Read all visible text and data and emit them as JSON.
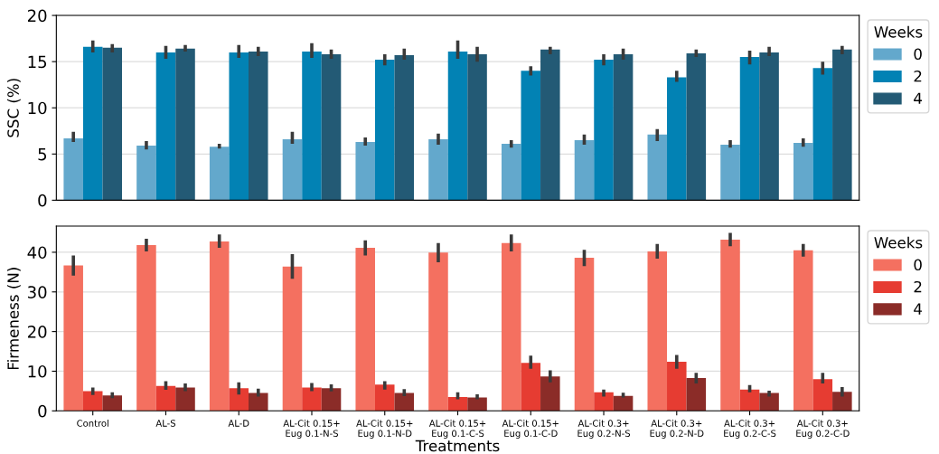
{
  "chart_data": [
    {
      "type": "bar",
      "ylabel": "SSC (%)",
      "legend_title": "Weeks",
      "legend": "top right",
      "grid": "y",
      "tick_labels": "y",
      "categories": [
        null,
        null,
        null,
        null,
        null,
        null,
        null,
        null,
        null,
        null,
        null
      ],
      "ylim": [
        0,
        20
      ],
      "yticks": [
        0,
        5,
        10,
        15,
        20
      ],
      "series": [
        {
          "name": "0",
          "color": "#63a8cc",
          "values": [
            6.7,
            5.9,
            5.8,
            6.6,
            6.3,
            6.6,
            6.1,
            6.5,
            7.1,
            6.0,
            6.2
          ],
          "errors": [
            [
              6.3,
              7.4
            ],
            [
              5.5,
              6.4
            ],
            [
              5.6,
              6.1
            ],
            [
              6.1,
              7.4
            ],
            [
              5.9,
              6.8
            ],
            [
              6.0,
              7.2
            ],
            [
              5.7,
              6.5
            ],
            [
              6.0,
              7.1
            ],
            [
              6.4,
              7.7
            ],
            [
              5.7,
              6.5
            ],
            [
              5.8,
              6.7
            ]
          ]
        },
        {
          "name": "2",
          "color": "#0282b4",
          "values": [
            16.6,
            16.0,
            16.0,
            16.1,
            15.2,
            16.1,
            14.0,
            15.2,
            13.3,
            15.5,
            14.3
          ],
          "errors": [
            [
              16.0,
              17.3
            ],
            [
              15.3,
              16.7
            ],
            [
              15.4,
              16.8
            ],
            [
              15.4,
              17.0
            ],
            [
              14.6,
              15.8
            ],
            [
              15.3,
              17.3
            ],
            [
              13.5,
              14.5
            ],
            [
              14.6,
              15.8
            ],
            [
              12.8,
              14.0
            ],
            [
              14.7,
              16.2
            ],
            [
              13.6,
              15.0
            ]
          ]
        },
        {
          "name": "4",
          "color": "#235a75",
          "values": [
            16.5,
            16.4,
            16.1,
            15.8,
            15.7,
            15.8,
            16.3,
            15.8,
            15.9,
            16.0,
            16.3
          ],
          "errors": [
            [
              16.0,
              16.9
            ],
            [
              16.1,
              16.8
            ],
            [
              15.6,
              16.6
            ],
            [
              15.3,
              16.3
            ],
            [
              15.2,
              16.4
            ],
            [
              15.0,
              16.6
            ],
            [
              15.8,
              16.6
            ],
            [
              15.2,
              16.4
            ],
            [
              15.5,
              16.3
            ],
            [
              15.6,
              16.6
            ],
            [
              15.8,
              16.7
            ]
          ]
        }
      ]
    },
    {
      "type": "bar",
      "ylabel": "Firmeness (N)",
      "xlabel": "Treatments",
      "legend_title": "Weeks",
      "legend": "top right",
      "grid": "y",
      "categories": [
        "Control",
        "AL-S",
        "AL-D",
        "AL-Cit 0.15+\nEug 0.1-N-S",
        "AL-Cit 0.15+\nEug 0.1-N-D",
        "AL-Cit 0.15+\nEug 0.1-C-S",
        "AL-Cit 0.15+\nEug 0.1-C-D",
        "AL-Cit 0.3+\nEug 0.2-N-S",
        "AL-Cit 0.3+\nEug 0.2-N-D",
        "AL-Cit 0.3+\nEug 0.2-C-S",
        "AL-Cit 0.3+\nEug 0.2-C-D"
      ],
      "ylim": [
        0,
        46.6
      ],
      "yticks": [
        0,
        10,
        20,
        30,
        40
      ],
      "series": [
        {
          "name": "0",
          "color": "#f47060",
          "values": [
            36.7,
            41.8,
            42.7,
            36.4,
            41.1,
            39.9,
            42.3,
            38.6,
            40.2,
            43.2,
            40.5
          ],
          "errors": [
            [
              34.1,
              39.2
            ],
            [
              40.2,
              43.4
            ],
            [
              41.1,
              44.5
            ],
            [
              33.3,
              39.5
            ],
            [
              39.2,
              43.0
            ],
            [
              37.5,
              42.3
            ],
            [
              40.2,
              44.5
            ],
            [
              36.5,
              40.6
            ],
            [
              38.4,
              42.1
            ],
            [
              41.5,
              44.9
            ],
            [
              38.9,
              42.1
            ]
          ]
        },
        {
          "name": "2",
          "color": "#e63c32",
          "values": [
            5.0,
            6.3,
            5.7,
            5.9,
            6.6,
            3.5,
            12.1,
            4.7,
            12.4,
            5.4,
            8.0
          ],
          "errors": [
            [
              4.0,
              5.9
            ],
            [
              5.3,
              7.5
            ],
            [
              4.1,
              7.2
            ],
            [
              5.0,
              7.0
            ],
            [
              5.4,
              7.5
            ],
            [
              2.9,
              4.7
            ],
            [
              10.6,
              13.9
            ],
            [
              3.6,
              5.4
            ],
            [
              10.6,
              14.1
            ],
            [
              4.7,
              6.5
            ],
            [
              6.9,
              9.6
            ]
          ]
        },
        {
          "name": "4",
          "color": "#8b2c28",
          "values": [
            3.9,
            5.9,
            4.5,
            5.7,
            4.5,
            3.4,
            8.7,
            3.8,
            8.3,
            4.5,
            4.8
          ],
          "errors": [
            [
              3.2,
              4.7
            ],
            [
              5.0,
              6.9
            ],
            [
              3.6,
              5.6
            ],
            [
              4.9,
              6.7
            ],
            [
              3.7,
              5.5
            ],
            [
              2.9,
              4.2
            ],
            [
              7.2,
              10.2
            ],
            [
              3.4,
              4.6
            ],
            [
              6.9,
              9.6
            ],
            [
              3.6,
              5.1
            ],
            [
              3.6,
              6.0
            ]
          ]
        }
      ]
    }
  ]
}
